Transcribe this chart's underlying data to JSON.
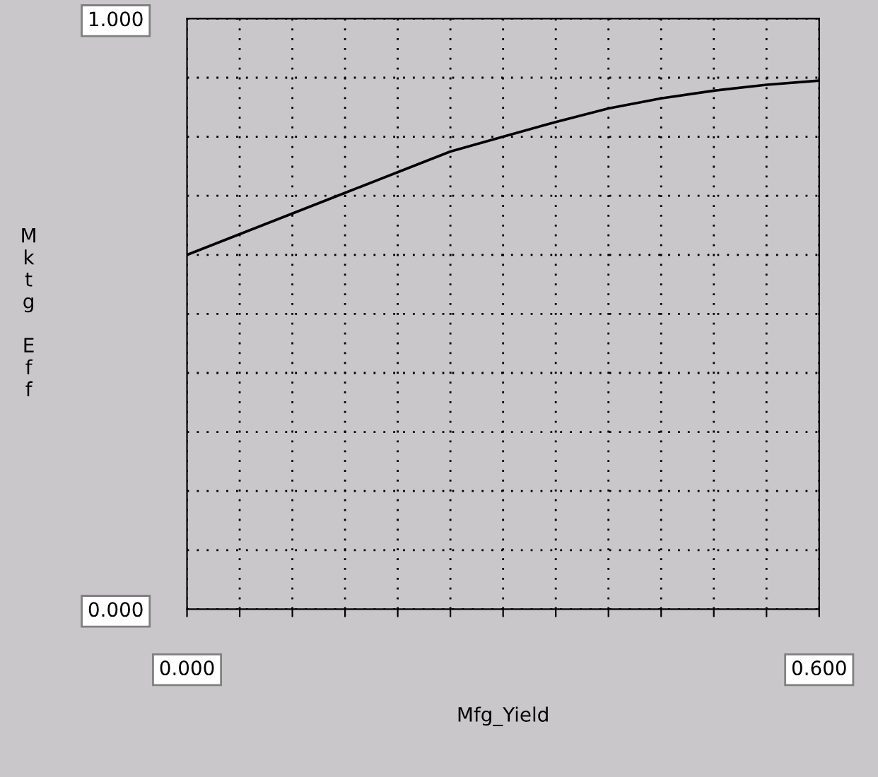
{
  "chart_data": {
    "type": "line",
    "xlabel": "Mfg_Yield",
    "ylabel": "Mktg Eff",
    "x": [
      0,
      0.05,
      0.1,
      0.15,
      0.2,
      0.25,
      0.3,
      0.35,
      0.4,
      0.45,
      0.5,
      0.55,
      0.6
    ],
    "series": [
      {
        "color": "#000000",
        "values": [
          0.6,
          0.635,
          0.67,
          0.705,
          0.74,
          0.775,
          0.8,
          0.825,
          0.848,
          0.865,
          0.878,
          0.888,
          0.895
        ]
      }
    ],
    "xlim": [
      0,
      0.6
    ],
    "ylim": [
      0,
      1
    ],
    "xticks": [
      {
        "value": 0,
        "label": "0.000"
      },
      {
        "value": 0.05,
        "label": null
      },
      {
        "value": 0.1,
        "label": null
      },
      {
        "value": 0.15,
        "label": null
      },
      {
        "value": 0.2,
        "label": null
      },
      {
        "value": 0.25,
        "label": null
      },
      {
        "value": 0.3,
        "label": null
      },
      {
        "value": 0.35,
        "label": null
      },
      {
        "value": 0.4,
        "label": null
      },
      {
        "value": 0.45,
        "label": null
      },
      {
        "value": 0.5,
        "label": null
      },
      {
        "value": 0.55,
        "label": null
      },
      {
        "value": 0.6,
        "label": "0.600"
      }
    ],
    "yticks": [
      {
        "value": 0,
        "label": "0.000"
      },
      {
        "value": 0.1,
        "label": null
      },
      {
        "value": 0.2,
        "label": null
      },
      {
        "value": 0.3,
        "label": null
      },
      {
        "value": 0.4,
        "label": null
      },
      {
        "value": 0.5,
        "label": null
      },
      {
        "value": 0.6,
        "label": null
      },
      {
        "value": 0.7,
        "label": null
      },
      {
        "value": 0.8,
        "label": null
      },
      {
        "value": 0.9,
        "label": null
      },
      {
        "value": 1,
        "label": "1.000"
      }
    ],
    "grid": true,
    "line_style": "solid",
    "marker": "none"
  }
}
